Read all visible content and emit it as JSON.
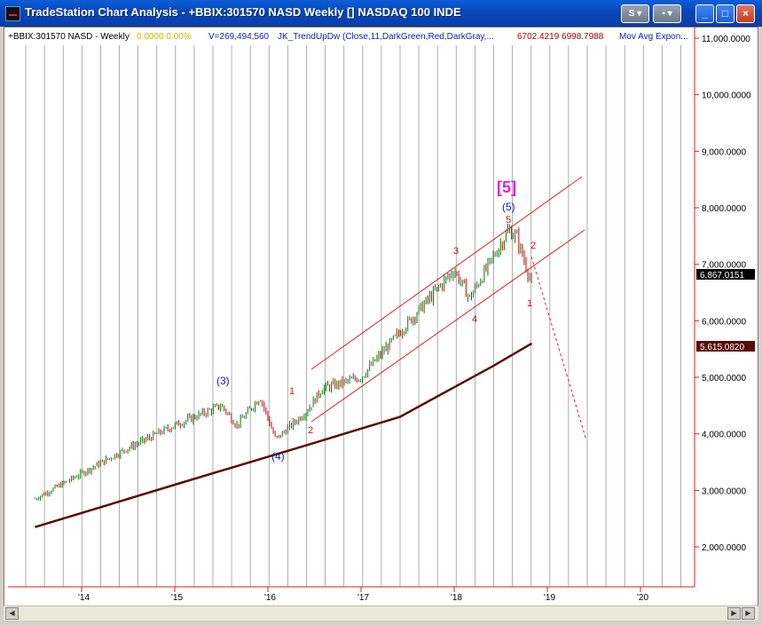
{
  "window": {
    "title": "TradeStation Chart Analysis - +BBIX:301570 NASD Weekly [] NASDAQ 100 INDE",
    "buttons": {
      "s_label": "S",
      "min_label": "_",
      "max_label": "□",
      "close_label": "×"
    }
  },
  "colors": {
    "up_bar": "#008000",
    "down_bar": "#cc0000",
    "neutral_bar": "#555555",
    "channel": "#dd2222",
    "moving_avg": "#5a0a0a",
    "wave_blue": "#0a1fa0",
    "wave_red": "#cc1111",
    "wave_magenta": "#e020d0",
    "axis_text": "#000000"
  },
  "header": {
    "symbol": "+BBIX:301570 NASD - Weekly",
    "change": "0.0000 0.00%",
    "volume": "V=269,494,560",
    "indicator": "JK_TrendUpDw (Close,11,DarkGreen,Red,DarkGray,...",
    "ind_values": "6702.4219  6998.7988",
    "mov_avg": "Mov Avg Expon..."
  },
  "price_axis": {
    "labels": [
      "11,000.0000",
      "10,000.0000",
      "9,000.0000",
      "8,000.0000",
      "7,000.0000",
      "6,000.0000",
      "5,000.0000",
      "4,000.0000",
      "3,000.0000",
      "2,000.0000"
    ],
    "current_price": "6,867.0151",
    "ma_price": "5,615.0820"
  },
  "time_axis": {
    "labels": [
      "'14",
      "'15",
      "'16",
      "'17",
      "'18",
      "'19",
      "'20"
    ]
  },
  "wave_labels": {
    "blue_3": "(3)",
    "blue_4": "(4)",
    "blue_5": "(5)",
    "magenta_5": "[5]",
    "red_1a": "1",
    "red_2a": "2",
    "red_3": "3",
    "red_4": "4",
    "red_5": "5",
    "red_1b": "1",
    "red_2b": "2"
  },
  "chart_data": {
    "type": "line",
    "title": "",
    "ylim": [
      1500,
      11500
    ],
    "x_ticks": [
      "'14",
      "'15",
      "'16",
      "'17",
      "'18",
      "'19",
      "'20"
    ],
    "series": [
      {
        "name": "",
        "x": [
          "2013-07",
          "2014-01",
          "2014-07",
          "2015-01",
          "2015-07",
          "2015-09",
          "2015-12",
          "2016-02",
          "2016-06",
          "2016-08",
          "2017-01",
          "2017-06",
          "2018-01",
          "2018-03",
          "2018-08",
          "2018-09",
          "2018-11"
        ],
        "values": [
          2850,
          3300,
          3750,
          4150,
          4500,
          4150,
          4650,
          3900,
          4400,
          4800,
          5000,
          5800,
          6900,
          6400,
          7600,
          7500,
          6650
        ]
      },
      {
        "name": "",
        "x": [
          "2013-07",
          "2015-01",
          "2016-06",
          "2017-06",
          "2018-06",
          "2018-11"
        ],
        "values": [
          2350,
          3100,
          3800,
          4300,
          5200,
          5600
        ]
      }
    ]
  }
}
